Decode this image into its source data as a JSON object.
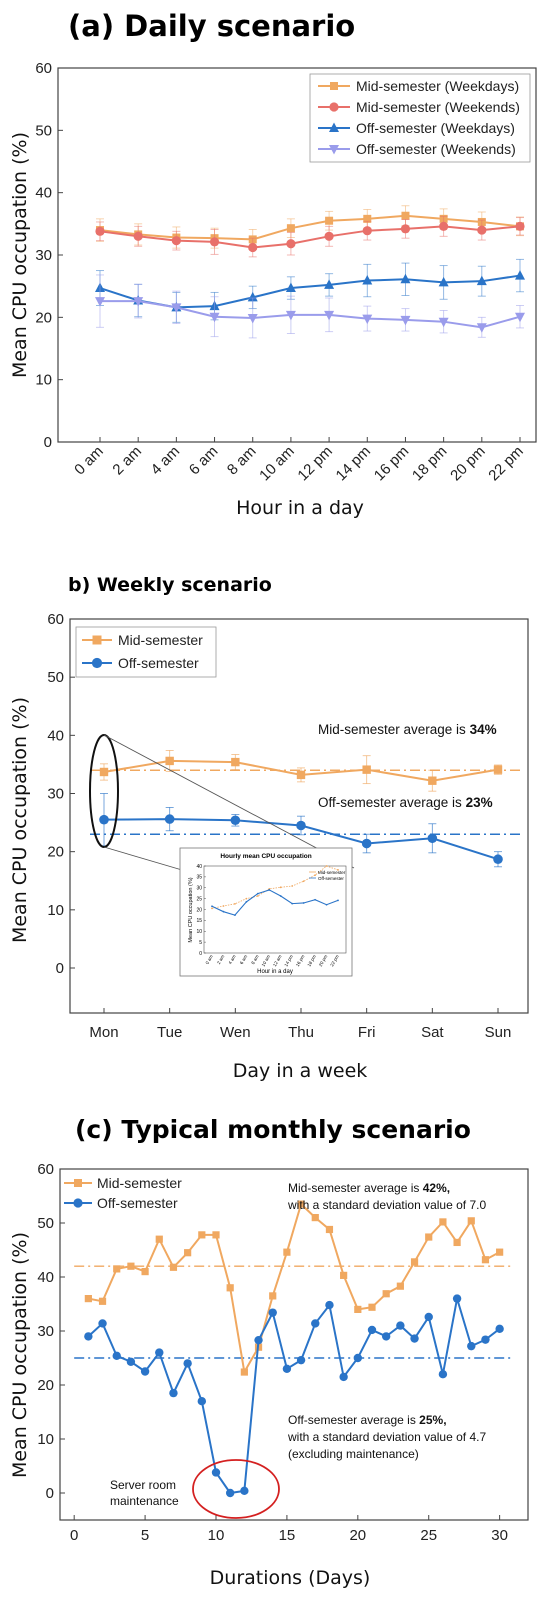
{
  "colors": {
    "mid_weekdays": "#F0A860",
    "mid_weekends": "#E8706A",
    "off_weekdays": "#2A74C8",
    "off_weekends": "#9A9CEB",
    "mid": "#F0A860",
    "off": "#2A74C8",
    "highlight": "#D42020"
  },
  "chart_data": [
    {
      "type": "line",
      "title": "(a) Daily scenario",
      "xlabel": "Hour in a day",
      "ylabel": "Mean CPU occupation (%)",
      "ylim": [
        0,
        60
      ],
      "yticks": [
        0,
        10,
        20,
        30,
        40,
        50,
        60
      ],
      "categories": [
        "0 am",
        "2 am",
        "4 am",
        "6 am",
        "8 am",
        "10 am",
        "12 pm",
        "14 pm",
        "16 pm",
        "18 pm",
        "20 pm",
        "22 pm"
      ],
      "legend_position": "top-right",
      "series": [
        {
          "name": "Mid-semester (Weekdays)",
          "marker": "square",
          "color_key": "mid_weekdays",
          "values": [
            34.0,
            33.3,
            32.8,
            32.7,
            32.5,
            34.3,
            35.5,
            35.8,
            36.3,
            35.8,
            35.3,
            34.6
          ],
          "errors": [
            1.8,
            1.7,
            1.7,
            1.6,
            1.6,
            1.5,
            1.5,
            1.5,
            1.6,
            1.6,
            1.6,
            1.5
          ]
        },
        {
          "name": "Mid-semester (Weekends)",
          "marker": "circle",
          "color_key": "mid_weekends",
          "values": [
            33.8,
            33.0,
            32.3,
            32.1,
            31.2,
            31.8,
            33.0,
            33.9,
            34.2,
            34.6,
            34.0,
            34.6
          ],
          "errors": [
            1.5,
            1.6,
            1.5,
            2.0,
            1.5,
            1.8,
            1.6,
            1.5,
            1.5,
            1.6,
            1.6,
            1.4
          ]
        },
        {
          "name": "Off-semester (Weekdays)",
          "marker": "triangle-up",
          "color_key": "off_weekdays",
          "values": [
            24.7,
            22.7,
            21.6,
            21.8,
            23.2,
            24.7,
            25.2,
            25.9,
            26.1,
            25.6,
            25.8,
            26.7
          ],
          "errors": [
            2.8,
            2.6,
            2.4,
            2.2,
            1.8,
            1.8,
            1.8,
            2.6,
            2.6,
            2.7,
            2.4,
            2.6
          ]
        },
        {
          "name": "Off-semester (Weekends)",
          "marker": "triangle-down",
          "color_key": "off_weekends",
          "values": [
            22.6,
            22.6,
            21.6,
            20.1,
            19.9,
            20.4,
            20.4,
            19.8,
            19.6,
            19.3,
            18.4,
            20.1
          ],
          "errors": [
            4.2,
            2.7,
            2.6,
            3.2,
            3.2,
            3.0,
            2.7,
            2.0,
            1.8,
            1.8,
            1.6,
            1.8
          ]
        }
      ]
    },
    {
      "type": "line",
      "title": "b) Weekly scenario",
      "xlabel": "Day in a week",
      "ylabel": "Mean CPU occupation (%)",
      "ylim": [
        0,
        60
      ],
      "yticks": [
        0,
        10,
        20,
        30,
        40,
        50,
        60
      ],
      "categories": [
        "Mon",
        "Tue",
        "Wen",
        "Thu",
        "Fri",
        "Sat",
        "Sun"
      ],
      "legend_position": "top-left",
      "series": [
        {
          "name": "Mid-semester",
          "marker": "square",
          "color_key": "mid",
          "values": [
            33.7,
            35.6,
            35.4,
            33.2,
            34.1,
            32.2,
            34.1
          ],
          "errors": [
            1.4,
            1.8,
            1.3,
            1.2,
            2.4,
            1.8,
            0.8
          ],
          "average": 34
        },
        {
          "name": "Off-semester",
          "marker": "circle",
          "color_key": "off",
          "values": [
            25.5,
            25.6,
            25.4,
            24.5,
            21.4,
            22.3,
            18.7
          ],
          "errors": [
            4.5,
            2.0,
            1.0,
            1.6,
            1.6,
            2.5,
            1.3
          ],
          "average": 23
        }
      ],
      "annotations": {
        "mid_avg_prefix": "Mid-semester average is ",
        "mid_avg_value": "34%",
        "off_avg_prefix": "Off-semester average is ",
        "off_avg_value": "23%"
      },
      "inset": {
        "title": "Hourly mean CPU occupation",
        "xlabel": "Hour in a day",
        "ylabel": "Mean CPU occupation (%)",
        "ylim": [
          0,
          40
        ],
        "yticks": [
          0,
          5,
          10,
          15,
          20,
          25,
          30,
          35,
          40
        ],
        "categories": [
          "0 am",
          "2 am",
          "4 am",
          "6 am",
          "8 am",
          "10 am",
          "12 am",
          "14 pm",
          "16 pm",
          "18 pm",
          "20 pm",
          "22 pm"
        ],
        "series": [
          {
            "name": "Mid-semester",
            "color_key": "mid",
            "values": [
              20.5,
              21.6,
              22.6,
              25.0,
              26.2,
              29.5,
              30.2,
              30.8,
              33.0,
              35.8,
              40.0,
              38.2
            ]
          },
          {
            "name": "Off-semester",
            "color_key": "off",
            "values": [
              21.5,
              19.0,
              17.4,
              23.5,
              27.3,
              29.0,
              26.2,
              22.7,
              23.0,
              24.5,
              22.2,
              24.2
            ]
          }
        ]
      }
    },
    {
      "type": "line",
      "title": "(c) Typical monthly scenario",
      "xlabel": "Durations (Days)",
      "ylabel": "Mean CPU occupation (%)",
      "ylim": [
        -5,
        60
      ],
      "yticks": [
        0,
        10,
        20,
        30,
        40,
        50,
        60
      ],
      "xlim": [
        -1,
        32
      ],
      "xticks": [
        0,
        5,
        10,
        15,
        20,
        25,
        30
      ],
      "legend_position": "top-left",
      "x": [
        1,
        2,
        3,
        4,
        5,
        6,
        7,
        8,
        9,
        10,
        11,
        12,
        13,
        14,
        15,
        16,
        17,
        18,
        19,
        20,
        21,
        22,
        23,
        24,
        25,
        26,
        27,
        28,
        29,
        30
      ],
      "series": [
        {
          "name": "Mid-semester",
          "marker": "square",
          "color_key": "mid",
          "values": [
            36.0,
            35.5,
            41.5,
            42.0,
            41.0,
            47.0,
            41.8,
            44.5,
            47.8,
            47.8,
            38.0,
            22.4,
            27.0,
            36.5,
            44.6,
            53.5,
            51.0,
            48.8,
            40.3,
            34.0,
            34.4,
            36.9,
            38.3,
            42.8,
            47.4,
            50.2,
            46.4,
            50.4,
            43.2,
            44.6
          ],
          "average": 42
        },
        {
          "name": "Off-semester",
          "marker": "circle",
          "color_key": "off",
          "values": [
            29.0,
            31.4,
            25.4,
            24.3,
            22.5,
            26.0,
            18.5,
            24.0,
            17.0,
            3.8,
            0.0,
            0.4,
            28.3,
            33.4,
            23.0,
            24.6,
            31.4,
            34.8,
            21.5,
            25.0,
            30.2,
            29.0,
            31.0,
            28.6,
            32.6,
            22.0,
            36.0,
            27.2,
            28.4,
            30.4
          ],
          "average": 25
        }
      ],
      "annotations": {
        "mid_avg_prefix": "Mid-semester average is ",
        "mid_avg_value": "42%,",
        "mid_sd": "with a standard deviation value of 7.0",
        "off_avg_prefix": "Off-semester average is ",
        "off_avg_value": "25%,",
        "off_sd": "with a standard deviation value of 4.7",
        "off_note": "(excluding maintenance)",
        "maintenance_line1": "Server room",
        "maintenance_line2": "maintenance"
      }
    }
  ]
}
